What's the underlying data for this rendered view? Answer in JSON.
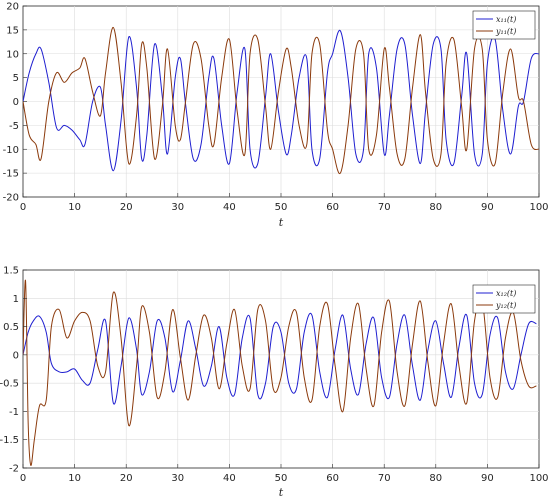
{
  "chart_data": [
    {
      "type": "line",
      "xlabel": "t",
      "ylabel": "",
      "xlim": [
        0,
        100
      ],
      "ylim": [
        -20,
        20
      ],
      "xticks": [
        0,
        10,
        20,
        30,
        40,
        50,
        60,
        70,
        80,
        90,
        100
      ],
      "yticks": [
        -20,
        -15,
        -10,
        -5,
        0,
        5,
        10,
        15,
        20
      ],
      "grid": true,
      "legend_position": "top-right",
      "series": [
        {
          "name": "x₁₁(t)",
          "color": "#1f1fd0",
          "x": [
            0,
            1.2,
            2.5,
            3.5,
            5,
            6.5,
            8,
            9.5,
            11,
            12,
            13.5,
            15,
            16,
            17.5,
            19,
            20.5,
            22,
            23,
            24,
            25.5,
            27,
            28,
            29.5,
            30.5,
            31.5,
            33,
            34.5,
            36,
            37,
            38.5,
            40,
            41.5,
            43,
            44,
            45.5,
            47,
            48,
            49.5,
            51,
            52,
            53.5,
            55,
            56,
            57.5,
            59,
            60,
            61.5,
            63,
            64.5,
            66,
            67,
            68.5,
            70,
            71,
            72.5,
            74,
            75.5,
            77,
            78,
            79.5,
            81,
            82,
            83.5,
            85,
            86,
            87.5,
            89,
            90,
            91.5,
            93,
            94.5,
            96,
            97,
            98.5,
            100
          ],
          "y": [
            0,
            6,
            10,
            11,
            4,
            -5.5,
            -5,
            -6,
            -8,
            -9,
            0,
            3,
            -5,
            -14.5,
            -4,
            13.5,
            3,
            -12,
            -7,
            12,
            1,
            -11,
            5,
            9,
            -0.5,
            -12,
            -9,
            5,
            9,
            -5,
            -13,
            2,
            11,
            -10,
            -13,
            1,
            10,
            -2,
            -11,
            -7,
            5,
            9,
            -10,
            -12,
            6,
            10,
            14.8,
            5,
            -11,
            -10,
            10,
            7,
            -11,
            -3,
            11,
            12,
            -3,
            -13,
            -2,
            12,
            11,
            -8,
            -13,
            1,
            10,
            -11,
            -11,
            8,
            13,
            -2,
            -11,
            -1,
            0,
            9,
            10
          ]
        },
        {
          "name": "y₁₁(t)",
          "color": "#8b3a0c",
          "x": [
            0,
            1.2,
            2.5,
            3.5,
            5,
            6.5,
            8,
            9.5,
            11,
            12,
            13.5,
            15,
            16,
            17.5,
            19,
            20.5,
            22,
            23,
            24,
            25.5,
            27,
            28,
            29.5,
            30.5,
            31.5,
            33,
            34.5,
            36,
            37,
            38.5,
            40,
            41.5,
            43,
            44,
            45.5,
            47,
            48,
            49.5,
            51,
            52,
            53.5,
            55,
            56,
            57.5,
            59,
            60,
            61.5,
            63,
            64.5,
            66,
            67,
            68.5,
            70,
            71,
            72.5,
            74,
            75.5,
            77,
            78,
            79.5,
            81,
            82,
            83.5,
            85,
            86,
            87.5,
            89,
            90,
            91.5,
            93,
            94.5,
            96,
            97,
            98.5,
            100
          ],
          "y": [
            0,
            -7,
            -9,
            -12,
            0,
            6,
            4,
            6,
            7,
            9,
            2,
            -3,
            6,
            15.5,
            4,
            -13,
            -3,
            12,
            7,
            -12,
            -1,
            11,
            -5,
            -8,
            0,
            12,
            9,
            -5,
            -9,
            5,
            13,
            -2,
            -11,
            10,
            13,
            -1,
            -10,
            2,
            11,
            7,
            -5,
            -9,
            10,
            12,
            -6,
            -10,
            -15,
            -5,
            11,
            10,
            -10,
            -7,
            11,
            3,
            -11,
            -12,
            3,
            14,
            2,
            -12,
            -11,
            8,
            13,
            -1,
            -10,
            11,
            11,
            -8,
            -13,
            2,
            11,
            1,
            0,
            -9,
            -10
          ]
        }
      ]
    },
    {
      "type": "line",
      "xlabel": "t",
      "ylabel": "",
      "xlim": [
        0,
        100
      ],
      "ylim": [
        -2,
        1.5
      ],
      "xticks": [
        0,
        10,
        20,
        30,
        40,
        50,
        60,
        70,
        80,
        90,
        100
      ],
      "yticks": [
        -2,
        -1.5,
        -1,
        -0.5,
        0,
        0.5,
        1,
        1.5
      ],
      "grid": true,
      "legend_position": "top-right",
      "series": [
        {
          "name": "x₁₂(t)",
          "color": "#1f1fd0",
          "x": [
            0,
            1,
            2,
            3.2,
            4.5,
            5.5,
            7,
            8.5,
            10,
            11.5,
            13,
            14.5,
            16,
            17.5,
            19,
            20.5,
            22,
            23,
            24.5,
            26,
            27.5,
            29,
            30.5,
            32,
            33.5,
            35,
            36.5,
            38,
            39.5,
            41,
            42.5,
            44,
            45.5,
            47,
            48.5,
            50,
            51.5,
            53,
            54.5,
            56,
            57.5,
            59,
            60.5,
            62,
            63.5,
            65,
            66.5,
            68,
            69.5,
            71,
            72.5,
            74,
            75.5,
            77,
            78.5,
            80,
            81.5,
            83,
            84.5,
            86,
            87.5,
            89,
            90.5,
            92,
            93.5,
            95,
            96.5,
            98,
            99.5
          ],
          "y": [
            0,
            0.4,
            0.6,
            0.68,
            0.4,
            -0.15,
            -0.3,
            -0.3,
            -0.25,
            -0.45,
            -0.5,
            0.1,
            0.6,
            -0.85,
            -0.2,
            0.65,
            0.1,
            -0.7,
            -0.3,
            0.6,
            0.3,
            -0.65,
            -0.1,
            0.6,
            0.1,
            -0.55,
            -0.2,
            0.5,
            -0.4,
            -0.7,
            0.3,
            0.65,
            -0.7,
            -0.5,
            0.5,
            0.4,
            -0.5,
            -0.6,
            0.4,
            0.7,
            -0.3,
            -0.75,
            0.1,
            0.7,
            -0.25,
            -0.7,
            0.2,
            0.65,
            -0.4,
            -0.75,
            0.2,
            0.7,
            -0.2,
            -0.8,
            0.1,
            0.6,
            -0.15,
            -0.75,
            0.15,
            0.7,
            -0.5,
            -0.7,
            0.35,
            0.65,
            -0.3,
            -0.6,
            0.0,
            0.55,
            0.55
          ]
        },
        {
          "name": "y₁₂(t)",
          "color": "#8b3a0c",
          "x": [
            0,
            0.5,
            1,
            1.5,
            2.2,
            3.2,
            4.5,
            5.5,
            7,
            8.5,
            10,
            11.5,
            13,
            14.5,
            16,
            17.5,
            19,
            20.5,
            22,
            23,
            24.5,
            26,
            27.5,
            29,
            30.5,
            32,
            33.5,
            35,
            36.5,
            38,
            39.5,
            41,
            42.5,
            44,
            45.5,
            47,
            48.5,
            50,
            51.5,
            53,
            54.5,
            56,
            57.5,
            59,
            60.5,
            62,
            63.5,
            65,
            66.5,
            68,
            69.5,
            71,
            72.5,
            74,
            75.5,
            77,
            78.5,
            80,
            81.5,
            83,
            84.5,
            86,
            87.5,
            89,
            90.5,
            92,
            93.5,
            95,
            96.5,
            98,
            99.5
          ],
          "y": [
            0,
            1.3,
            -1.2,
            -1.95,
            -1.5,
            -0.9,
            -0.8,
            0.5,
            0.8,
            0.3,
            0.6,
            0.75,
            0.6,
            -0.2,
            -0.3,
            1.1,
            0.3,
            -1.25,
            -0.2,
            0.85,
            0.4,
            -0.75,
            -0.3,
            0.8,
            -0.05,
            -0.8,
            0,
            0.7,
            0.3,
            -0.6,
            0.2,
            0.8,
            -0.2,
            -0.6,
            0.8,
            0.6,
            -0.6,
            -0.4,
            0.5,
            0.75,
            -0.4,
            -0.8,
            0.5,
            0.9,
            -0.2,
            -1.0,
            0.3,
            0.9,
            -0.25,
            -0.9,
            0.4,
            0.95,
            -0.3,
            -0.9,
            0.2,
            0.95,
            -0.15,
            -0.9,
            0.2,
            0.9,
            -0.2,
            -0.85,
            0.6,
            0.95,
            -0.4,
            -0.75,
            0.3,
            0.75,
            -0.1,
            -0.55,
            -0.55
          ]
        }
      ]
    }
  ]
}
